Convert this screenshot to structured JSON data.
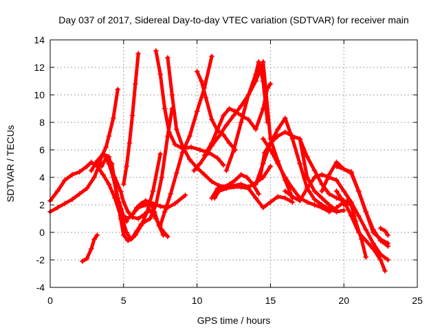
{
  "chart_data": {
    "type": "line",
    "title": "Day 037 of 2017, Sidereal Day-to-day VTEC variation (SDTVAR) for receiver main",
    "xlabel": "GPS time / hours",
    "ylabel": "SDTVAR / TECUs",
    "xlim": [
      0,
      25
    ],
    "ylim": [
      -4,
      14
    ],
    "xticks": [
      "0",
      "5",
      "10",
      "15",
      "20",
      "25"
    ],
    "yticks": [
      "-4",
      "-2",
      "0",
      "2",
      "4",
      "6",
      "8",
      "10",
      "12",
      "14"
    ],
    "grid": true,
    "legend": "none",
    "series_color": "#ff0000",
    "marker": "plus",
    "series": [
      {
        "x": [
          0.0,
          0.5,
          1.0,
          1.5,
          2.0,
          2.5,
          3.0,
          3.3,
          3.5,
          3.8,
          4.0,
          4.3,
          4.6
        ],
        "y": [
          1.5,
          1.8,
          2.1,
          2.4,
          2.8,
          3.2,
          4.0,
          4.8,
          5.5,
          6.2,
          7.0,
          8.3,
          10.4
        ]
      },
      {
        "x": [
          0.0,
          0.5,
          1.0,
          1.5,
          2.0,
          2.5,
          2.8,
          3.2,
          3.6,
          4.0,
          4.4,
          4.8,
          5.2
        ],
        "y": [
          2.3,
          3.0,
          3.8,
          4.2,
          4.4,
          4.8,
          5.1,
          4.8,
          4.2,
          3.5,
          2.5,
          1.2,
          0.8
        ]
      },
      {
        "x": [
          2.2,
          2.5,
          2.8,
          3.0,
          3.2
        ],
        "y": [
          -2.1,
          -1.9,
          -1.2,
          -0.5,
          -0.2
        ]
      },
      {
        "x": [
          2.8,
          3.2,
          3.6,
          4.0,
          4.3,
          4.6,
          5.0,
          5.3,
          5.6,
          6.0,
          6.5,
          7.0,
          7.5,
          8.0,
          8.5,
          9.2
        ],
        "y": [
          4.5,
          5.2,
          5.7,
          5.5,
          4.0,
          2.5,
          1.2,
          1.0,
          1.3,
          1.8,
          2.0,
          2.1,
          1.9,
          1.8,
          2.1,
          2.7
        ]
      },
      {
        "x": [
          3.5,
          3.8,
          4.0,
          4.4,
          4.8,
          5.0,
          5.3,
          5.6,
          6.0,
          6.4,
          6.8,
          7.2,
          7.6,
          8.0
        ],
        "y": [
          4.8,
          5.4,
          5.0,
          4.0,
          3.0,
          2.2,
          1.5,
          1.1,
          1.0,
          1.3,
          1.6,
          1.0,
          0.2,
          -0.3
        ]
      },
      {
        "x": [
          4.0,
          4.3,
          4.6,
          4.9,
          5.2,
          5.5,
          5.8,
          6.2,
          6.6,
          7.0,
          7.5
        ],
        "y": [
          5.0,
          4.0,
          2.5,
          1.0,
          0.0,
          -0.5,
          -0.2,
          0.5,
          1.5,
          3.0,
          5.7
        ]
      },
      {
        "x": [
          3.8,
          4.2,
          4.5,
          4.8,
          5.0,
          5.3,
          5.6,
          5.9,
          6.2,
          6.8,
          7.2,
          7.6,
          8.0,
          8.3
        ],
        "y": [
          5.5,
          5.0,
          3.0,
          1.0,
          -0.2,
          -0.6,
          -0.4,
          0.1,
          0.6,
          1.0,
          2.0,
          4.0,
          7.0,
          9.0
        ]
      },
      {
        "x": [
          5.0,
          5.2,
          5.4,
          5.6,
          5.8,
          6.0
        ],
        "y": [
          3.5,
          4.8,
          6.5,
          8.5,
          10.8,
          13.0
        ]
      },
      {
        "x": [
          5.3,
          5.6,
          5.9,
          6.2,
          6.5,
          6.8,
          7.1,
          7.4,
          7.7
        ],
        "y": [
          1.0,
          1.3,
          1.8,
          2.1,
          2.3,
          2.2,
          1.5,
          0.5,
          -0.2
        ]
      },
      {
        "x": [
          7.2,
          7.5,
          7.8,
          8.1,
          8.5,
          9.0,
          9.6,
          10.2,
          10.8,
          11.4,
          11.8
        ],
        "y": [
          13.2,
          11.5,
          9.0,
          7.3,
          6.4,
          6.1,
          6.2,
          6.0,
          5.8,
          5.4,
          4.9
        ]
      },
      {
        "x": [
          8.0,
          8.3,
          8.6,
          9.0,
          9.5,
          10.0,
          10.5,
          11.0,
          11.5,
          12.0,
          12.5,
          13.0,
          13.5,
          14.0,
          14.5,
          15.0
        ],
        "y": [
          12.7,
          10.0,
          7.5,
          6.3,
          5.3,
          4.7,
          4.2,
          3.7,
          3.4,
          3.3,
          3.4,
          3.5,
          3.3,
          3.6,
          4.0,
          4.8
        ]
      },
      {
        "x": [
          7.5,
          7.8,
          8.2,
          8.6,
          9.0,
          9.5,
          10.0,
          10.5,
          11.0
        ],
        "y": [
          0.5,
          1.5,
          2.8,
          4.3,
          5.8,
          7.0,
          8.8,
          10.5,
          12.8
        ]
      },
      {
        "x": [
          10.0,
          10.3,
          10.6,
          11.0,
          11.4,
          11.8,
          12.2,
          12.6
        ],
        "y": [
          11.7,
          11.0,
          9.8,
          8.2,
          7.4,
          7.1,
          6.5,
          6.0
        ]
      },
      {
        "x": [
          9.8,
          10.2,
          10.6,
          11.0,
          11.5,
          12.0,
          12.5,
          13.0,
          13.5,
          14.0,
          14.5,
          15.0,
          15.5,
          16.0,
          16.5
        ],
        "y": [
          4.5,
          5.0,
          5.6,
          6.3,
          7.0,
          7.8,
          8.5,
          9.2,
          10.0,
          11.0,
          12.4,
          6.8,
          5.2,
          3.8,
          2.5
        ]
      },
      {
        "x": [
          11.0,
          11.4,
          11.8,
          12.2,
          12.6,
          13.0,
          13.4,
          13.8,
          14.2
        ],
        "y": [
          2.5,
          3.2,
          3.3,
          3.5,
          3.8,
          4.2,
          4.0,
          3.5,
          2.8
        ]
      },
      {
        "x": [
          10.5,
          11.0,
          11.4,
          11.8,
          12.2,
          12.6,
          13.0,
          13.5,
          14.0,
          14.5,
          14.8,
          15.0
        ],
        "y": [
          5.6,
          6.5,
          7.5,
          8.5,
          9.0,
          8.8,
          8.5,
          8.2,
          7.5,
          9.0,
          10.5,
          10.8
        ]
      },
      {
        "x": [
          11.2,
          11.5,
          12.0,
          12.5,
          13.0,
          13.5,
          14.0,
          14.5,
          15.0,
          15.5,
          16.0,
          16.5
        ],
        "y": [
          2.5,
          3.0,
          3.2,
          3.3,
          3.3,
          3.2,
          2.5,
          1.8,
          2.2,
          2.6,
          2.5,
          2.2
        ]
      },
      {
        "x": [
          12.0,
          12.5,
          13.0,
          13.5,
          14.0,
          14.2,
          14.5,
          14.8
        ],
        "y": [
          4.5,
          6.0,
          8.0,
          10.0,
          11.5,
          12.4,
          11.0,
          8.0
        ]
      },
      {
        "x": [
          14.0,
          14.5,
          15.0,
          15.5,
          16.0,
          16.5,
          17.0,
          17.5,
          18.0,
          18.5,
          19.0,
          19.5,
          20.0
        ],
        "y": [
          3.5,
          5.0,
          6.5,
          7.5,
          8.3,
          6.8,
          5.0,
          3.2,
          2.4,
          2.0,
          1.7,
          1.5,
          1.6
        ]
      },
      {
        "x": [
          14.3,
          14.6,
          15.0,
          15.5,
          16.0,
          16.5,
          17.0,
          17.5,
          18.0,
          18.5,
          19.0,
          19.5
        ],
        "y": [
          4.0,
          5.8,
          6.5,
          7.0,
          7.3,
          7.0,
          6.8,
          4.0,
          3.0,
          2.5,
          2.0,
          1.6
        ]
      },
      {
        "x": [
          14.5,
          15.0,
          15.5,
          16.0,
          16.5,
          17.0,
          17.5,
          18.0,
          18.5,
          19.0,
          19.5,
          20.0,
          20.5
        ],
        "y": [
          6.8,
          6.0,
          5.0,
          4.0,
          3.2,
          2.5,
          2.2,
          2.0,
          1.8,
          1.5,
          1.8,
          2.2,
          2.0
        ]
      },
      {
        "x": [
          16.0,
          16.5,
          17.0,
          17.5,
          18.0,
          18.5,
          19.0,
          19.5,
          20.0,
          20.5,
          21.0,
          21.5,
          22.0,
          22.5,
          23.0
        ],
        "y": [
          3.0,
          2.6,
          2.3,
          3.2,
          4.0,
          4.2,
          4.0,
          3.8,
          3.0,
          2.2,
          1.2,
          0.2,
          -0.8,
          -1.6,
          -2.0
        ]
      },
      {
        "x": [
          17.0,
          17.5,
          18.0,
          18.5,
          19.0,
          19.5,
          20.0,
          20.5,
          21.0,
          21.5,
          22.0,
          22.5,
          22.8
        ],
        "y": [
          6.8,
          5.5,
          4.5,
          3.5,
          2.8,
          2.5,
          2.3,
          1.2,
          0.0,
          -0.6,
          -1.2,
          -2.0,
          -2.8
        ]
      },
      {
        "x": [
          18.5,
          19.0,
          19.5,
          20.0,
          20.5,
          21.0,
          21.5,
          22.0,
          22.5,
          23.0
        ],
        "y": [
          3.0,
          4.2,
          5.1,
          4.6,
          4.4,
          3.0,
          1.5,
          0.0,
          -0.5,
          -0.8
        ]
      },
      {
        "x": [
          19.5,
          20.0,
          20.5,
          21.0,
          21.5,
          22.0,
          22.5,
          23.0
        ],
        "y": [
          4.8,
          4.6,
          4.3,
          3.0,
          1.5,
          0.2,
          -0.6,
          -1.0
        ]
      },
      {
        "x": [
          19.5,
          19.8,
          20.0,
          20.2,
          20.5,
          20.8,
          21.2,
          21.5
        ],
        "y": [
          3.0,
          2.5,
          2.0,
          2.3,
          2.0,
          0.8,
          -0.5,
          -1.8
        ]
      },
      {
        "x": [
          22.5,
          22.8,
          23.0
        ],
        "y": [
          0.3,
          0.1,
          -0.2
        ]
      }
    ]
  }
}
